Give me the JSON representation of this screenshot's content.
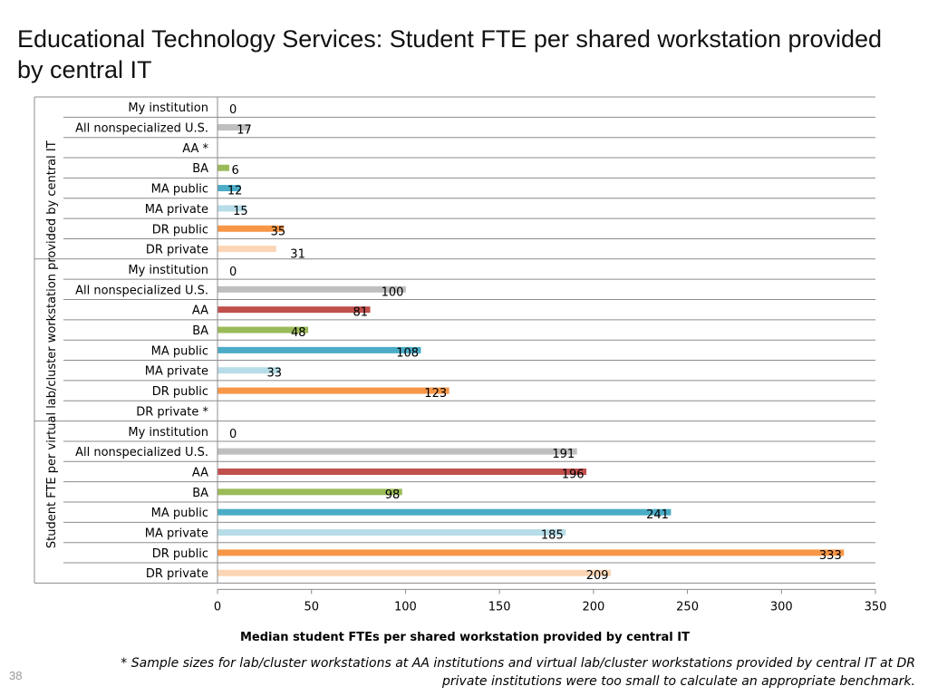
{
  "title": "Educational Technology Services: Student FTE per shared workstation provided by central IT",
  "footnote": "* Sample sizes for lab/cluster workstations at AA institutions and virtual lab/cluster workstations provided by central IT at DR private institutions were too small to calculate an appropriate benchmark.",
  "page_number": "38",
  "chart_data": {
    "type": "bar",
    "orientation": "horizontal",
    "xlabel": "Median student FTEs per shared workstation provided by central IT",
    "ylabel": "Student FTE per virtual lab/cluster workstation provided by central IT",
    "xlim": [
      0,
      350
    ],
    "xticks": [
      0,
      50,
      100,
      150,
      200,
      250,
      300,
      350
    ],
    "categories": [
      "My institution",
      "All nonspecialized U.S.",
      "AA *",
      "BA",
      "MA public",
      "MA private",
      "DR public",
      "DR private",
      "My institution",
      "All nonspecialized U.S.",
      "AA",
      "BA",
      "MA public",
      "MA private",
      "DR public",
      "DR private *",
      "My institution",
      "All nonspecialized U.S.",
      "AA",
      "BA",
      "MA public",
      "MA private",
      "DR public",
      "DR private"
    ],
    "values": [
      0,
      17,
      null,
      6,
      12,
      15,
      35,
      31,
      0,
      100,
      81,
      48,
      108,
      33,
      123,
      null,
      0,
      191,
      196,
      98,
      241,
      185,
      333,
      209
    ],
    "data_labels": [
      "0",
      "17",
      "",
      "6",
      "12",
      "15",
      "35",
      "31",
      "0",
      "100",
      "81",
      "48",
      "108",
      "33",
      "123",
      "",
      "0",
      "191",
      "196",
      "98",
      "241",
      "185",
      "333",
      "209"
    ],
    "colors": {
      "My institution": "#1f3864",
      "All nonspecialized U.S.": "#bfbfbf",
      "AA": "#c0504d",
      "BA": "#9bbb59",
      "MA public": "#4bacc6",
      "MA private": "#b7dde8",
      "DR public": "#f79646",
      "DR private": "#fcd5b5"
    },
    "grid": false,
    "legend": "none"
  }
}
